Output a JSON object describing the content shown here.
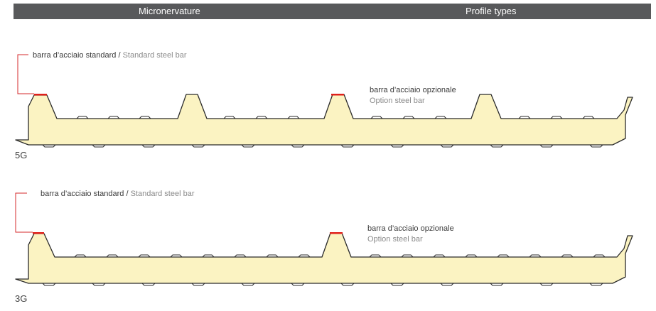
{
  "header": {
    "left_title": "Micronervature",
    "right_title": "Profile types"
  },
  "profiles": [
    {
      "code": "5G",
      "standard_it": "barra d’acciaio standard",
      "separator": "/",
      "standard_en": "Standard steel bar",
      "optional_it": "barra d’acciaio opzionale",
      "optional_en": "Option steel bar"
    },
    {
      "code": "3G",
      "standard_it": "barra d’acciaio standard",
      "separator": "/",
      "standard_en": "Standard steel bar",
      "optional_it": "barra d’acciaio opzionale",
      "optional_en": "Option steel bar"
    }
  ],
  "colors": {
    "header_bg": "#58595b",
    "foam_fill": "#fbf3c2",
    "outline": "#2b2b2b",
    "steel_bar": "#e0201b",
    "leader_line": "#d6282b"
  }
}
